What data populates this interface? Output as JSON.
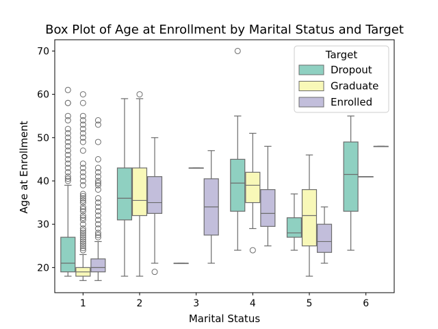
{
  "chart_data": {
    "type": "box",
    "title": "Box Plot of Age at Enrollment by Marital Status and Target",
    "xlabel": "Marital Status",
    "ylabel": "Age at Enrollment",
    "categories": [
      "1",
      "2",
      "3",
      "4",
      "5",
      "6"
    ],
    "ylim": [
      14.2,
      72.6
    ],
    "yticks": [
      20,
      30,
      40,
      50,
      60,
      70
    ],
    "legend": {
      "title": "Target",
      "placement": "top-right"
    },
    "series": [
      {
        "name": "Dropout",
        "color": "#8fd0c1",
        "boxes": [
          {
            "category": "1",
            "whislo": 18,
            "q1": 19,
            "med": 21,
            "q3": 27,
            "whishi": 39,
            "fliers": [
              40,
              40.5,
              41,
              42,
              43,
              44,
              45,
              46,
              47,
              48,
              49,
              50,
              51,
              52,
              54,
              55,
              58,
              58,
              61
            ]
          },
          {
            "category": "2",
            "whislo": 18,
            "q1": 31,
            "med": 36,
            "q3": 43,
            "whishi": 59,
            "fliers": []
          },
          {
            "category": "3",
            "whislo": 21,
            "q1": 21,
            "med": 21,
            "q3": 21,
            "whishi": 21,
            "fliers": []
          },
          {
            "category": "4",
            "whislo": 24,
            "q1": 33,
            "med": 39.5,
            "q3": 45,
            "whishi": 55,
            "fliers": [
              70
            ]
          },
          {
            "category": "5",
            "whislo": 24,
            "q1": 27,
            "med": 28,
            "q3": 31.5,
            "whishi": 37,
            "fliers": []
          },
          {
            "category": "6",
            "whislo": 24,
            "q1": 33,
            "med": 41.5,
            "q3": 49,
            "whishi": 55,
            "fliers": []
          }
        ]
      },
      {
        "name": "Graduate",
        "color": "#f8f8b8",
        "boxes": [
          {
            "category": "1",
            "whislo": 17,
            "q1": 18,
            "med": 19,
            "q3": 20,
            "whishi": 23,
            "fliers": [
              24,
              24.5,
              25,
              25.5,
              26,
              26.5,
              27,
              27.5,
              28,
              28.5,
              29,
              30,
              31,
              31.5,
              32,
              33,
              33.5,
              34,
              35,
              35.5,
              36,
              36.5,
              37,
              39,
              40,
              41,
              42,
              43,
              44,
              47,
              49,
              50,
              51,
              52,
              53,
              54,
              55,
              58,
              60
            ]
          },
          {
            "category": "2",
            "whislo": 18,
            "q1": 32,
            "med": 35.5,
            "q3": 43,
            "whishi": 59,
            "fliers": [
              60
            ]
          },
          {
            "category": "3",
            "whislo": 43,
            "q1": 43,
            "med": 43,
            "q3": 43,
            "whishi": 43,
            "fliers": []
          },
          {
            "category": "4",
            "whislo": 29,
            "q1": 35,
            "med": 39,
            "q3": 42,
            "whishi": 51,
            "fliers": [
              24
            ]
          },
          {
            "category": "5",
            "whislo": 18,
            "q1": 25,
            "med": 32,
            "q3": 38,
            "whishi": 46,
            "fliers": []
          },
          {
            "category": "6",
            "whislo": 41,
            "q1": 41,
            "med": 41,
            "q3": 41,
            "whishi": 41,
            "fliers": []
          }
        ]
      },
      {
        "name": "Enrolled",
        "color": "#c2bedb",
        "boxes": [
          {
            "category": "1",
            "whislo": 17,
            "q1": 19,
            "med": 20,
            "q3": 22,
            "whishi": 26,
            "fliers": [
              27,
              27.5,
              28,
              29,
              30,
              31,
              32,
              33,
              34,
              35,
              36,
              38,
              39,
              39.5,
              40,
              41,
              42,
              43,
              45,
              49,
              53,
              54
            ]
          },
          {
            "category": "2",
            "whislo": 21,
            "q1": 32.5,
            "med": 35,
            "q3": 41,
            "whishi": 50,
            "fliers": [
              19
            ]
          },
          {
            "category": "3",
            "whislo": 21,
            "q1": 27.5,
            "med": 34,
            "q3": 40.5,
            "whishi": 47,
            "fliers": []
          },
          {
            "category": "4",
            "whislo": 25,
            "q1": 29.5,
            "med": 32.5,
            "q3": 38,
            "whishi": 48,
            "fliers": []
          },
          {
            "category": "5",
            "whislo": 21,
            "q1": 23.5,
            "med": 26,
            "q3": 30,
            "whishi": 34,
            "fliers": []
          },
          {
            "category": "6",
            "whislo": 48,
            "q1": 48,
            "med": 48,
            "q3": 48,
            "whishi": 48,
            "fliers": []
          }
        ]
      }
    ],
    "grid": false
  }
}
